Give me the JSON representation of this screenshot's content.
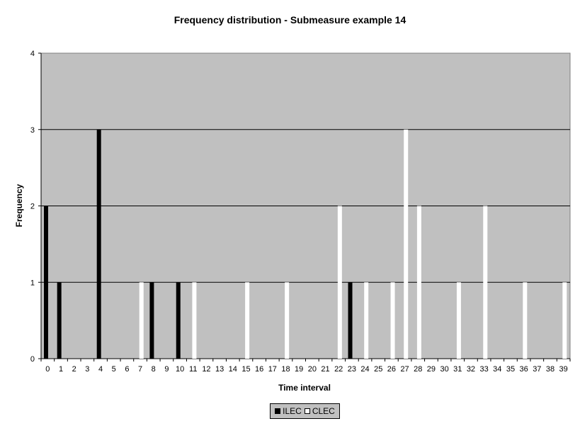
{
  "chart_data": {
    "type": "bar",
    "title": "Frequency distribution - Submeasure example 14",
    "xlabel": "Time interval",
    "ylabel": "Frequency",
    "ylim": [
      0,
      4
    ],
    "yticks": [
      "0",
      "1",
      "2",
      "3",
      "4"
    ],
    "grid": true,
    "legend_placement": "bottom",
    "plot_background": "#c0c0c0",
    "categories": [
      "0",
      "1",
      "2",
      "3",
      "4",
      "5",
      "6",
      "7",
      "8",
      "9",
      "10",
      "11",
      "12",
      "13",
      "14",
      "15",
      "16",
      "17",
      "18",
      "19",
      "20",
      "21",
      "22",
      "23",
      "24",
      "25",
      "26",
      "27",
      "28",
      "29",
      "30",
      "31",
      "32",
      "33",
      "34",
      "35",
      "36",
      "37",
      "38",
      "39"
    ],
    "series": [
      {
        "name": "ILEC",
        "color": "#000000",
        "values": [
          2,
          1,
          0,
          0,
          3,
          0,
          0,
          0,
          1,
          0,
          1,
          0,
          0,
          0,
          0,
          0,
          0,
          0,
          0,
          0,
          0,
          0,
          0,
          1,
          0,
          0,
          0,
          0,
          0,
          0,
          0,
          0,
          0,
          0,
          0,
          0,
          0,
          0,
          0,
          0
        ]
      },
      {
        "name": "CLEC",
        "color": "#ffffff",
        "values": [
          0,
          0,
          0,
          0,
          0,
          0,
          0,
          1,
          0,
          0,
          0,
          1,
          0,
          0,
          0,
          1,
          0,
          0,
          1,
          0,
          0,
          0,
          2,
          0,
          1,
          0,
          1,
          3,
          2,
          0,
          0,
          1,
          0,
          2,
          0,
          0,
          1,
          0,
          0,
          1
        ]
      }
    ]
  }
}
